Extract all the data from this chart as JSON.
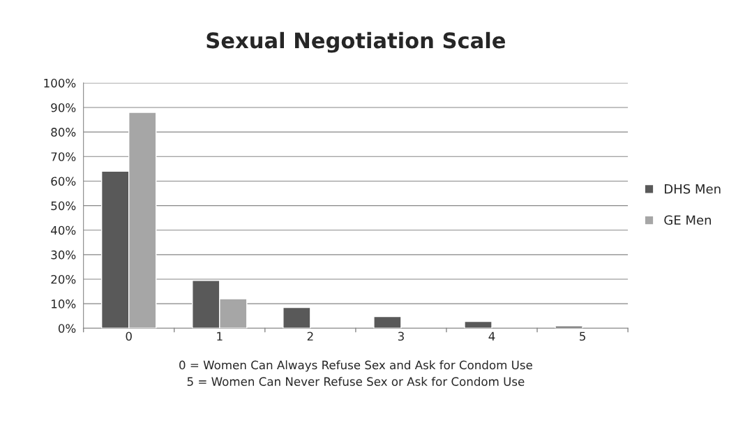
{
  "chart_data": {
    "type": "bar",
    "title": "Sexual Negotiation Scale",
    "xlabel": "0 = Women Can Always Refuse Sex and Ask for Condom Use\n5 = Women Can Never Refuse Sex or Ask for Condom Use",
    "categories": [
      "0",
      "1",
      "2",
      "3",
      "4",
      "5"
    ],
    "series": [
      {
        "name": "DHS Men",
        "color": "#595959",
        "values": [
          64,
          19.5,
          8.5,
          4.8,
          2.8,
          0.9
        ]
      },
      {
        "name": "GE Men",
        "color": "#a6a6a6",
        "values": [
          88,
          12,
          null,
          null,
          null,
          null
        ]
      }
    ],
    "ylim": [
      0,
      100
    ],
    "yticks": [
      {
        "value": 0,
        "label": "0%"
      },
      {
        "value": 10,
        "label": "10%"
      },
      {
        "value": 20,
        "label": "20%"
      },
      {
        "value": 30,
        "label": "30%"
      },
      {
        "value": 40,
        "label": "40%"
      },
      {
        "value": 50,
        "label": "50%"
      },
      {
        "value": 60,
        "label": "60%"
      },
      {
        "value": 70,
        "label": "70%"
      },
      {
        "value": 80,
        "label": "80%"
      },
      {
        "value": 90,
        "label": "90%"
      },
      {
        "value": 100,
        "label": "100%"
      }
    ],
    "grid": "y",
    "legend": "right"
  }
}
